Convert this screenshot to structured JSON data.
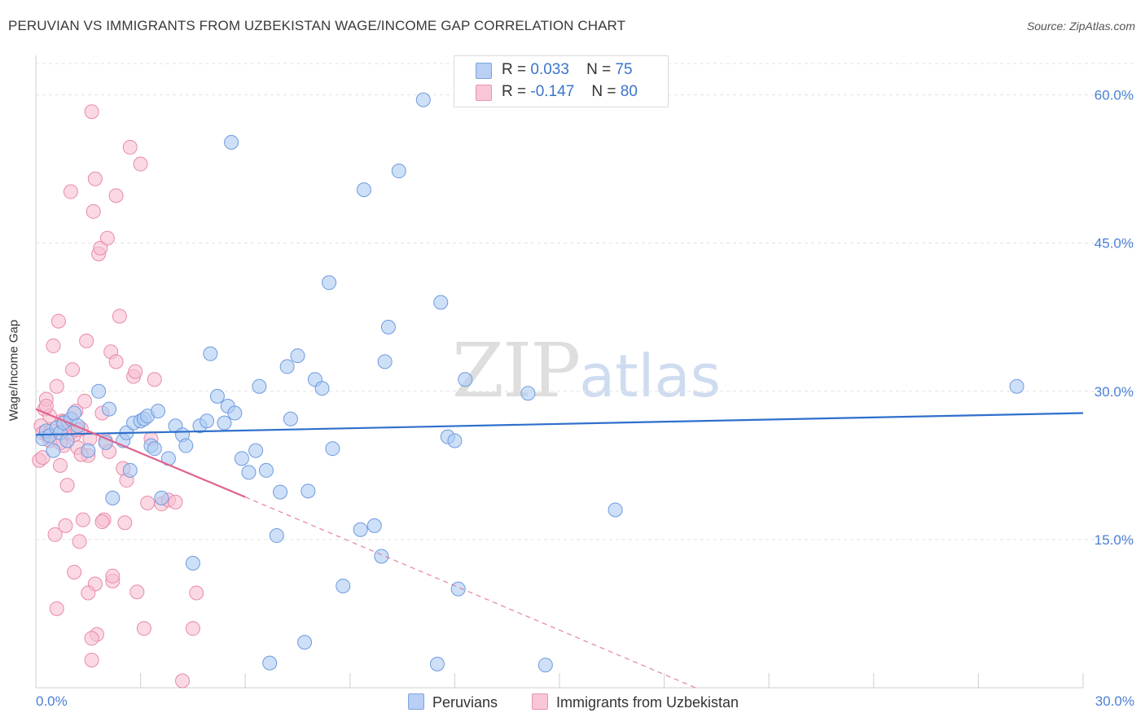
{
  "title": "PERUVIAN VS IMMIGRANTS FROM UZBEKISTAN WAGE/INCOME GAP CORRELATION CHART",
  "source": "Source: ZipAtlas.com",
  "watermark": {
    "zip": "ZIP",
    "atlas": "atlas"
  },
  "legend": {
    "series1": {
      "r_label": "R =",
      "r_value": "0.033",
      "n_label": "N =",
      "n_value": "75"
    },
    "series2": {
      "r_label": "R =",
      "r_value": "-0.147",
      "n_label": "N =",
      "n_value": "80"
    }
  },
  "bottom_legend": {
    "series1": "Peruvians",
    "series2": "Immigrants from Uzbekistan"
  },
  "colors": {
    "blue_fill": "#aecbf2",
    "blue_stroke": "#6f9ae0",
    "blue_line": "#2f6fcc",
    "pink_fill": "#f7c0d2",
    "pink_stroke": "#e98aaa",
    "pink_line": "#e0648e",
    "grid": "#e3e3e3",
    "tick_label": "#4a7fd4"
  },
  "chart_data": {
    "type": "scatter",
    "title": "PERUVIAN VS IMMIGRANTS FROM UZBEKISTAN WAGE/INCOME GAP CORRELATION CHART",
    "xlabel": "",
    "ylabel": "Wage/Income Gap",
    "xlim": [
      0,
      30
    ],
    "ylim": [
      0,
      64
    ],
    "x_tick_labels": [
      "0.0%",
      "30.0%"
    ],
    "y_ticks": [
      15,
      30,
      45,
      60
    ],
    "y_tick_labels": [
      "15.0%",
      "30.0%",
      "45.0%",
      "60.0%"
    ],
    "grid": true,
    "series": [
      {
        "name": "Peruvians",
        "r": 0.033,
        "n": 75,
        "trend": {
          "x0": 0,
          "y0": 25.6,
          "x1": 30,
          "y1": 27.8
        },
        "points": [
          [
            0.2,
            25.2
          ],
          [
            0.3,
            26.0
          ],
          [
            0.4,
            25.5
          ],
          [
            0.5,
            24.0
          ],
          [
            0.6,
            26.3
          ],
          [
            0.7,
            25.8
          ],
          [
            0.8,
            26.8
          ],
          [
            0.9,
            25.0
          ],
          [
            1.0,
            27.2
          ],
          [
            1.1,
            27.8
          ],
          [
            1.2,
            26.5
          ],
          [
            1.5,
            24.0
          ],
          [
            1.8,
            30.0
          ],
          [
            2.0,
            24.8
          ],
          [
            2.1,
            28.2
          ],
          [
            2.2,
            19.2
          ],
          [
            2.5,
            25.0
          ],
          [
            2.6,
            25.8
          ],
          [
            2.7,
            22.0
          ],
          [
            2.8,
            26.8
          ],
          [
            3.0,
            27.0
          ],
          [
            3.1,
            27.2
          ],
          [
            3.2,
            27.5
          ],
          [
            3.3,
            24.5
          ],
          [
            3.4,
            24.2
          ],
          [
            3.5,
            28.0
          ],
          [
            3.6,
            19.2
          ],
          [
            3.8,
            23.2
          ],
          [
            4.0,
            26.5
          ],
          [
            4.2,
            25.6
          ],
          [
            4.3,
            24.5
          ],
          [
            4.5,
            12.6
          ],
          [
            4.7,
            26.5
          ],
          [
            4.9,
            27.0
          ],
          [
            5.0,
            33.8
          ],
          [
            5.2,
            29.5
          ],
          [
            5.4,
            26.8
          ],
          [
            5.5,
            28.5
          ],
          [
            5.7,
            27.8
          ],
          [
            5.6,
            55.2
          ],
          [
            5.9,
            23.2
          ],
          [
            6.1,
            21.8
          ],
          [
            6.3,
            24.0
          ],
          [
            6.4,
            30.5
          ],
          [
            6.6,
            22.0
          ],
          [
            6.7,
            2.5
          ],
          [
            6.9,
            15.4
          ],
          [
            7.0,
            19.8
          ],
          [
            7.2,
            32.5
          ],
          [
            7.3,
            27.2
          ],
          [
            7.5,
            33.6
          ],
          [
            7.7,
            4.6
          ],
          [
            7.8,
            19.9
          ],
          [
            8.0,
            31.2
          ],
          [
            8.2,
            30.3
          ],
          [
            8.4,
            41.0
          ],
          [
            8.5,
            24.2
          ],
          [
            8.8,
            10.3
          ],
          [
            9.3,
            16.0
          ],
          [
            9.4,
            50.4
          ],
          [
            9.7,
            16.4
          ],
          [
            9.9,
            13.3
          ],
          [
            10.0,
            33.0
          ],
          [
            10.1,
            36.5
          ],
          [
            10.4,
            52.3
          ],
          [
            11.1,
            59.5
          ],
          [
            11.5,
            2.4
          ],
          [
            11.6,
            39.0
          ],
          [
            11.8,
            25.4
          ],
          [
            12.0,
            25.0
          ],
          [
            12.1,
            10.0
          ],
          [
            12.3,
            31.2
          ],
          [
            14.1,
            29.8
          ],
          [
            14.6,
            2.3
          ],
          [
            16.6,
            18.0
          ],
          [
            28.1,
            30.5
          ]
        ]
      },
      {
        "name": "Immigrants from Uzbekistan",
        "r": -0.147,
        "n": 80,
        "trend": {
          "x0": 0,
          "y0": 28.2,
          "x1": 6,
          "y1": 19.3,
          "dash_to": {
            "x": 18.9,
            "y": 0
          }
        },
        "points": [
          [
            0.1,
            23.0
          ],
          [
            0.15,
            26.5
          ],
          [
            0.2,
            25.8
          ],
          [
            0.25,
            28.2
          ],
          [
            0.3,
            29.2
          ],
          [
            0.35,
            25.5
          ],
          [
            0.4,
            27.5
          ],
          [
            0.45,
            26.0
          ],
          [
            0.5,
            34.6
          ],
          [
            0.55,
            15.5
          ],
          [
            0.6,
            30.5
          ],
          [
            0.65,
            37.1
          ],
          [
            0.7,
            22.5
          ],
          [
            0.75,
            27.0
          ],
          [
            0.8,
            24.5
          ],
          [
            0.85,
            16.4
          ],
          [
            0.9,
            26.5
          ],
          [
            1.0,
            25.8
          ],
          [
            1.05,
            32.2
          ],
          [
            1.1,
            11.7
          ],
          [
            1.15,
            28.0
          ],
          [
            1.2,
            24.3
          ],
          [
            1.25,
            14.8
          ],
          [
            1.3,
            26.2
          ],
          [
            1.35,
            17.0
          ],
          [
            1.4,
            29.0
          ],
          [
            1.45,
            35.1
          ],
          [
            1.5,
            23.5
          ],
          [
            1.55,
            25.2
          ],
          [
            1.6,
            2.8
          ],
          [
            1.65,
            48.2
          ],
          [
            1.7,
            51.5
          ],
          [
            1.75,
            5.4
          ],
          [
            1.8,
            43.9
          ],
          [
            1.85,
            44.5
          ],
          [
            1.9,
            27.8
          ],
          [
            1.95,
            17.0
          ],
          [
            2.0,
            25.0
          ],
          [
            2.05,
            45.5
          ],
          [
            2.1,
            23.9
          ],
          [
            2.15,
            34.0
          ],
          [
            2.2,
            10.8
          ],
          [
            2.3,
            33.0
          ],
          [
            2.4,
            37.6
          ],
          [
            2.5,
            22.2
          ],
          [
            2.55,
            16.7
          ],
          [
            2.6,
            21.0
          ],
          [
            2.7,
            54.7
          ],
          [
            2.8,
            31.5
          ],
          [
            2.85,
            32.0
          ],
          [
            2.9,
            9.7
          ],
          [
            3.0,
            53.0
          ],
          [
            3.1,
            6.0
          ],
          [
            3.2,
            18.7
          ],
          [
            3.3,
            25.2
          ],
          [
            3.4,
            31.2
          ],
          [
            3.6,
            18.6
          ],
          [
            3.8,
            19.0
          ],
          [
            4.0,
            18.8
          ],
          [
            4.2,
            0.7
          ],
          [
            4.5,
            6.0
          ],
          [
            4.6,
            9.6
          ],
          [
            1.0,
            50.2
          ],
          [
            1.6,
            5.0
          ],
          [
            1.7,
            10.5
          ],
          [
            2.3,
            49.8
          ],
          [
            1.3,
            23.6
          ],
          [
            0.9,
            20.5
          ],
          [
            0.2,
            23.3
          ],
          [
            0.6,
            8.0
          ],
          [
            1.1,
            25.6
          ],
          [
            0.4,
            25.0
          ],
          [
            0.8,
            26.9
          ],
          [
            1.2,
            26.1
          ],
          [
            0.3,
            28.5
          ],
          [
            1.5,
            9.6
          ],
          [
            2.2,
            11.3
          ],
          [
            1.6,
            58.3
          ],
          [
            0.7,
            24.8
          ],
          [
            1.9,
            16.8
          ]
        ]
      }
    ]
  }
}
